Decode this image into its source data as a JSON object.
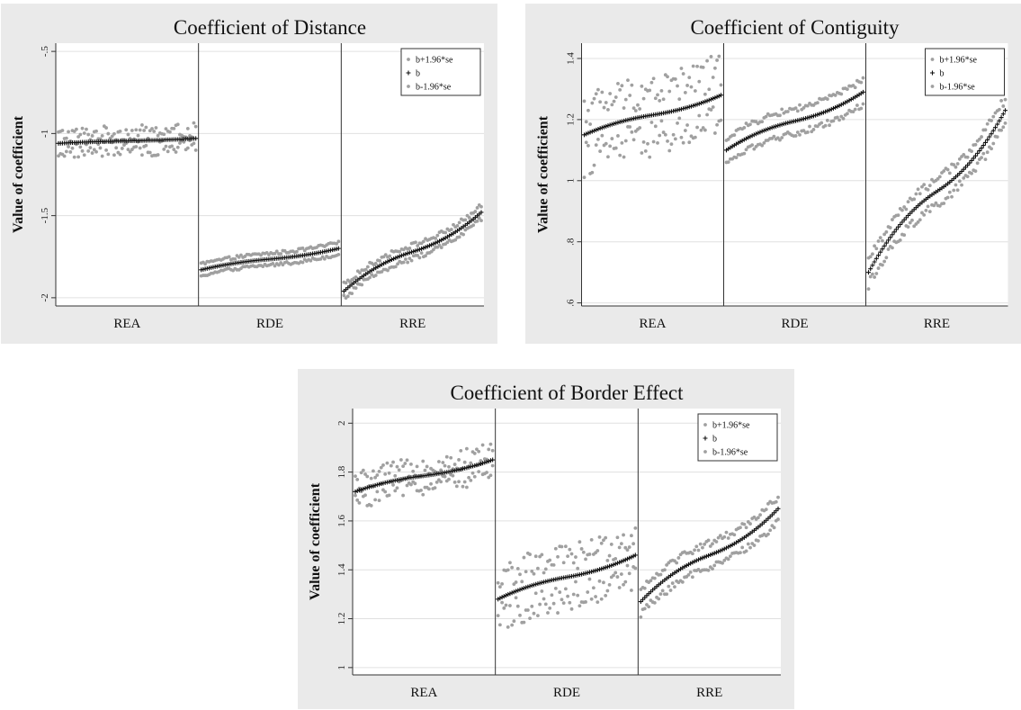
{
  "colors": {
    "panel_background": "#eaeaea",
    "plot_background": "#ffffff",
    "band_points": "#a0a0a0",
    "estimate_points": "#111111",
    "grid": "#e0e0e0"
  },
  "chart_data": [
    {
      "type": "scatter",
      "title": "Coefficient of Distance",
      "ylabel": "Value of coefficient",
      "xlabel": "",
      "ylim": [
        -2.05,
        -0.45
      ],
      "yticks": [
        -2,
        -1.5,
        -1,
        -0.5
      ],
      "ytick_labels": [
        "-2",
        "-1.5",
        "-1",
        "-.5"
      ],
      "grid": true,
      "legend_position": "top-right",
      "categories": [
        "REA",
        "RDE",
        "RRE"
      ],
      "points_per_group": 70,
      "series": [
        {
          "name": "b+1.96*se",
          "marker": "dot",
          "color": "#a0a0a0"
        },
        {
          "name": "b",
          "marker": "plus",
          "color": "#111111"
        },
        {
          "name": "b-1.96*se",
          "marker": "dot",
          "color": "#a0a0a0"
        }
      ],
      "groups": [
        {
          "category": "REA",
          "b_start": -1.06,
          "b_end": -1.03,
          "curve": 0.5,
          "se_band": 0.05,
          "scatter": 0.045
        },
        {
          "category": "RDE",
          "b_start": -1.83,
          "b_end": -1.7,
          "curve": 0.5,
          "se_band": 0.035,
          "scatter": 0.01
        },
        {
          "category": "RRE",
          "b_start": -1.96,
          "b_end": -1.48,
          "curve": 0.5,
          "se_band": 0.04,
          "scatter": 0.015
        }
      ]
    },
    {
      "type": "scatter",
      "title": "Coefficient of Contiguity",
      "ylabel": "Value of coefficient",
      "xlabel": "",
      "ylim": [
        0.59,
        1.45
      ],
      "yticks": [
        0.6,
        0.8,
        1,
        1.2,
        1.4
      ],
      "ytick_labels": [
        ".6",
        ".8",
        "1",
        "1.2",
        "1.4"
      ],
      "grid": true,
      "legend_position": "top-right",
      "categories": [
        "REA",
        "RDE",
        "RRE"
      ],
      "points_per_group": 70,
      "series": [
        {
          "name": "b+1.96*se",
          "marker": "dot",
          "color": "#a0a0a0"
        },
        {
          "name": "b",
          "marker": "plus",
          "color": "#111111"
        },
        {
          "name": "b-1.96*se",
          "marker": "dot",
          "color": "#a0a0a0"
        }
      ],
      "groups": [
        {
          "category": "REA",
          "b_start": 1.15,
          "b_end": 1.28,
          "curve": 0.5,
          "se_band": 0.08,
          "scatter": 0.06
        },
        {
          "category": "RDE",
          "b_start": 1.1,
          "b_end": 1.29,
          "curve": 0.5,
          "se_band": 0.04,
          "scatter": 0.01
        },
        {
          "category": "RRE",
          "b_start": 0.7,
          "b_end": 1.23,
          "curve": 0.5,
          "se_band": 0.04,
          "scatter": 0.015
        }
      ]
    },
    {
      "type": "scatter",
      "title": "Coefficient of Border Effect",
      "ylabel": "Value of coefficient",
      "xlabel": "",
      "ylim": [
        0.97,
        2.06
      ],
      "yticks": [
        1,
        1.2,
        1.4,
        1.6,
        1.8,
        2
      ],
      "ytick_labels": [
        "1",
        "1.2",
        "1.4",
        "1.6",
        "1.8",
        "2"
      ],
      "grid": true,
      "legend_position": "top-right",
      "categories": [
        "REA",
        "RDE",
        "RRE"
      ],
      "points_per_group": 70,
      "series": [
        {
          "name": "b+1.96*se",
          "marker": "dot",
          "color": "#a0a0a0"
        },
        {
          "name": "b",
          "marker": "plus",
          "color": "#111111"
        },
        {
          "name": "b-1.96*se",
          "marker": "dot",
          "color": "#a0a0a0"
        }
      ],
      "groups": [
        {
          "category": "REA",
          "b_start": 1.72,
          "b_end": 1.85,
          "curve": 0.5,
          "se_band": 0.04,
          "scatter": 0.04
        },
        {
          "category": "RDE",
          "b_start": 1.28,
          "b_end": 1.46,
          "curve": 0.5,
          "se_band": 0.08,
          "scatter": 0.06
        },
        {
          "category": "RRE",
          "b_start": 1.27,
          "b_end": 1.65,
          "curve": 0.5,
          "se_band": 0.05,
          "scatter": 0.015
        }
      ]
    }
  ]
}
